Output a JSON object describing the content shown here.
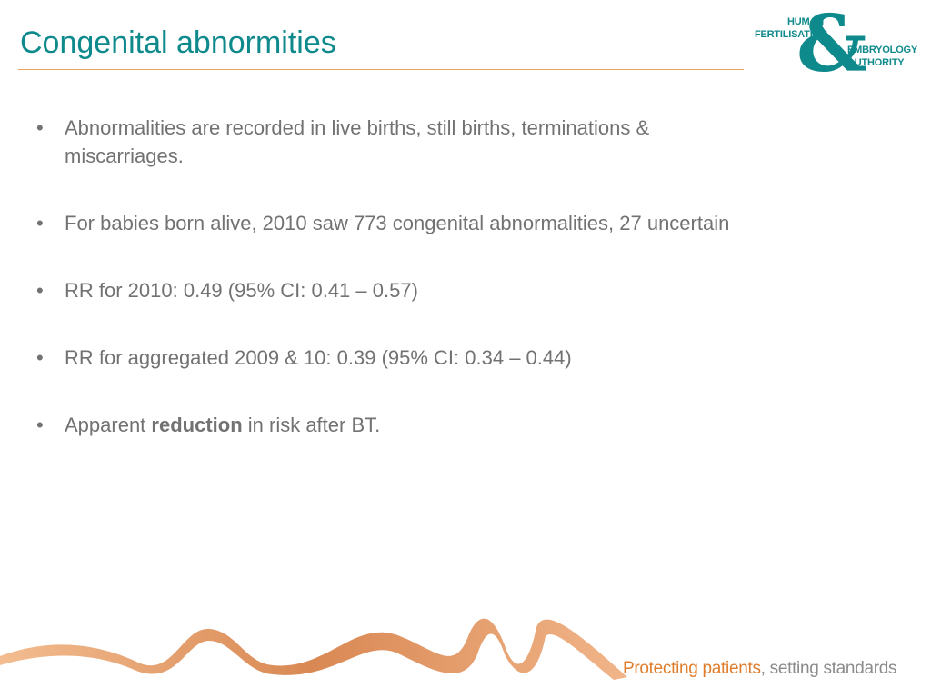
{
  "slide": {
    "title": "Congenital abnormities"
  },
  "logo": {
    "line1": "HUMAN",
    "line2": "FERTILISATION",
    "line3": "EMBRYOLOGY",
    "line4": "AUTHORITY",
    "ampersand": "&"
  },
  "bullets": [
    {
      "text": "Abnormalities are recorded in live births, still births, terminations & miscarriages."
    },
    {
      "text": "For babies born alive, 2010 saw 773 congenital abnormalities, 27 uncertain"
    },
    {
      "text": "RR for 2010: 0.49 (95% CI: 0.41 – 0.57)"
    },
    {
      "text": "RR for aggregated 2009 & 10: 0.39 (95% CI: 0.34 – 0.44)"
    },
    {
      "prefix": "Apparent ",
      "bold": "reduction",
      "suffix": " in risk after BT."
    }
  ],
  "footer": {
    "tagline_strong": "Protecting patients",
    "tagline_rest": ", setting standards"
  },
  "colors": {
    "accent_teal": "#0f8a8c",
    "accent_orange": "#e07d2c",
    "body_text": "#727272"
  }
}
